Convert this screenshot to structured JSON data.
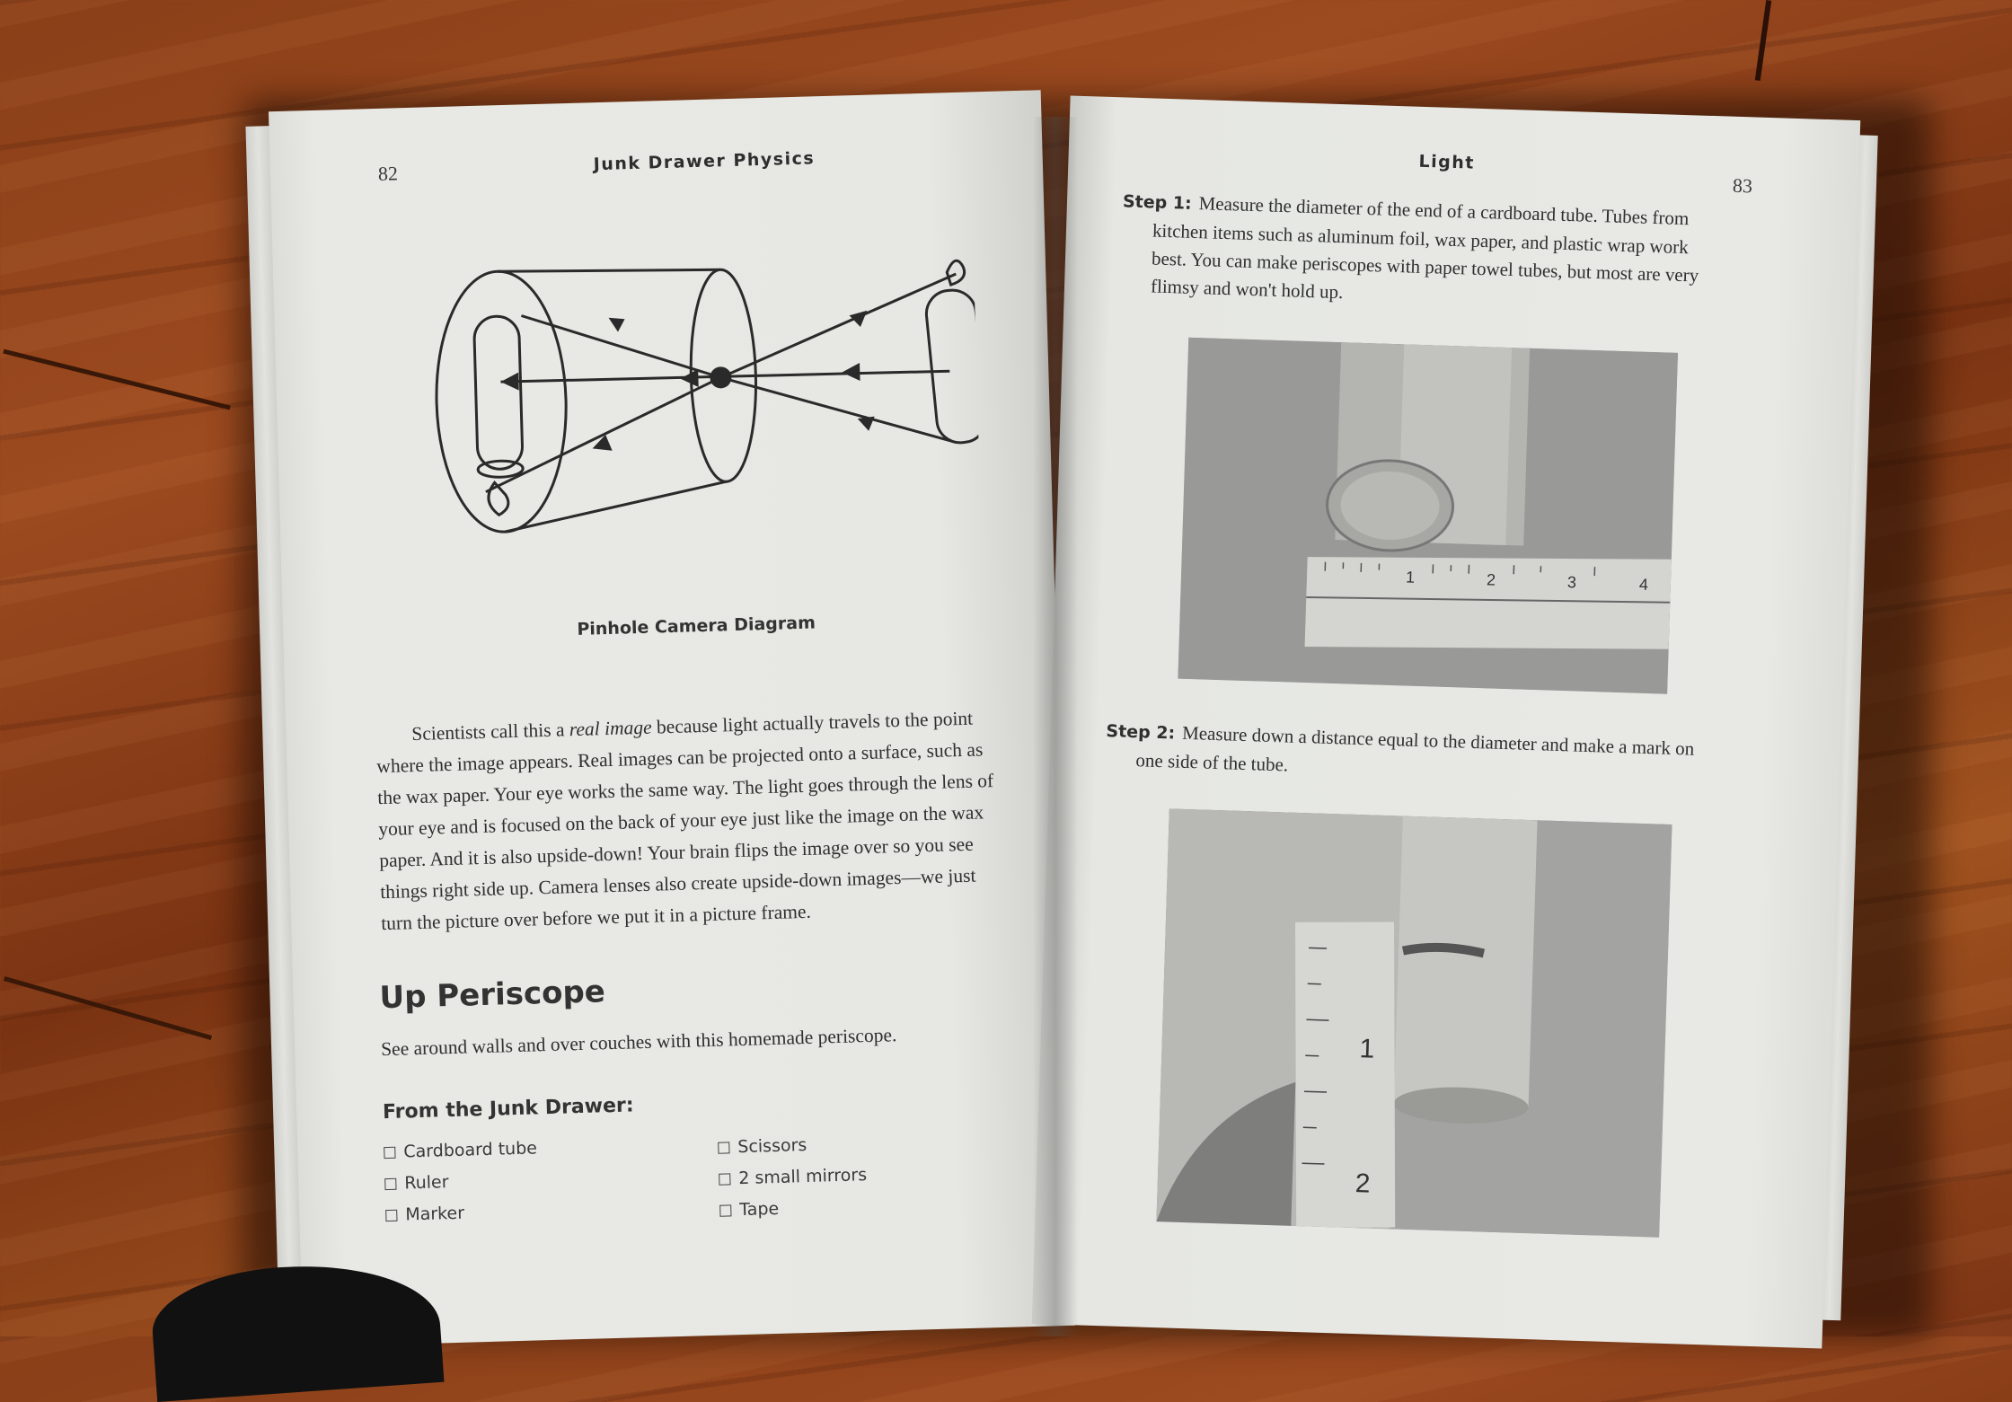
{
  "left_page": {
    "page_number": "82",
    "running_head": "Junk Drawer Physics",
    "figure_caption": "Pinhole Camera Diagram",
    "paragraph_lines": [
      "Scientists call this a real image because light actually travels to the point",
      "where the image appears. Real images can be projected onto a surface, such as",
      "the wax paper. Your eye works the same way. The light goes through the lens of",
      "your eye and is focused on the back of your eye just like the image on the wax",
      "paper. And it is also upside-down! Your brain flips the image over so you see",
      "things right side up. Camera lenses also create upside-down images—we just",
      "turn the picture over before we put it in a picture frame."
    ],
    "italic_phrase": "real image",
    "section_title": "Up Periscope",
    "section_intro": "See around walls and over couches with this homemade periscope.",
    "materials_heading": "From the Junk Drawer:",
    "materials_left": [
      "Cardboard tube",
      "Ruler",
      "Marker"
    ],
    "materials_right": [
      "Scissors",
      "2 small mirrors",
      "Tape"
    ]
  },
  "right_page": {
    "page_number": "83",
    "running_head": "Light",
    "step1_label": "Step 1:",
    "step1_first_line": "Measure the diameter of the end of a cardboard tube. Tubes from",
    "step1_lines": [
      "kitchen items such as aluminum foil, wax paper, and plastic wrap work",
      "best. You can make periscopes with paper towel tubes, but most are very",
      "flimsy and won't hold up."
    ],
    "step2_label": "Step 2:",
    "step2_first_line": "Measure down a distance equal to the diameter and make a mark on",
    "step2_lines": [
      "one side of the tube."
    ],
    "photo1_ruler_marks": [
      "1",
      "2",
      "3",
      "4"
    ],
    "photo2_ruler_marks": [
      "1",
      "2"
    ]
  }
}
